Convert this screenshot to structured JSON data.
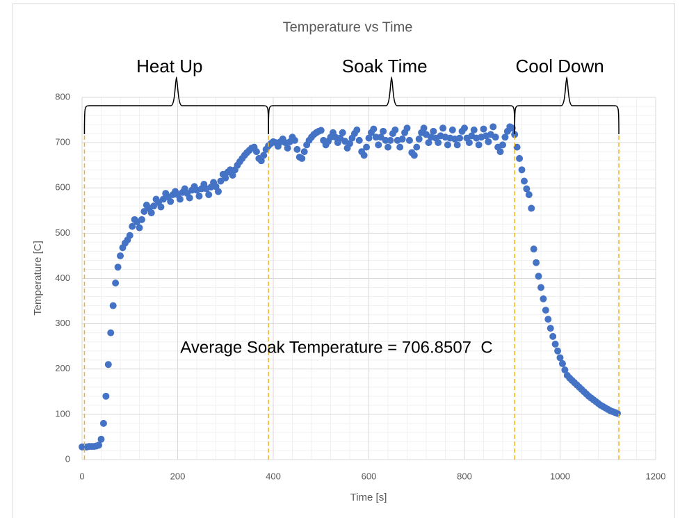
{
  "chart_data": {
    "type": "scatter",
    "title": "Temperature vs Time",
    "x_label": "Time [s]",
    "y_label": "Temperature [C]",
    "color": "#4472c4",
    "grid": true,
    "minor_grid": true,
    "xlim": [
      0,
      1200
    ],
    "xticks": [
      0,
      200,
      400,
      600,
      800,
      1000,
      1200
    ],
    "ylim": [
      0,
      800
    ],
    "yticks": [
      0,
      100,
      200,
      300,
      400,
      500,
      600,
      700,
      800
    ],
    "phases": [
      {
        "label": "Heat Up"
      },
      {
        "label": "Soak Time"
      },
      {
        "label": "Cool Down"
      }
    ],
    "phase_bounds": [
      5,
      390,
      905,
      1123
    ],
    "note": "Average Soak Temperature = 706.8507  C",
    "x": [
      0,
      5,
      10,
      15,
      20,
      25,
      30,
      35,
      40,
      45,
      50,
      55,
      60,
      65,
      70,
      75,
      80,
      85,
      90,
      95,
      100,
      105,
      110,
      115,
      120,
      125,
      130,
      135,
      140,
      145,
      150,
      155,
      160,
      165,
      170,
      175,
      180,
      185,
      190,
      195,
      200,
      205,
      210,
      215,
      220,
      225,
      230,
      235,
      240,
      245,
      250,
      255,
      260,
      265,
      270,
      275,
      280,
      285,
      290,
      295,
      300,
      305,
      310,
      315,
      320,
      325,
      330,
      335,
      340,
      345,
      350,
      355,
      360,
      365,
      370,
      375,
      380,
      385,
      390,
      395,
      400,
      405,
      410,
      415,
      420,
      425,
      430,
      435,
      440,
      445,
      450,
      455,
      460,
      465,
      470,
      475,
      480,
      485,
      490,
      495,
      500,
      505,
      510,
      515,
      520,
      525,
      530,
      535,
      540,
      545,
      550,
      555,
      560,
      565,
      570,
      575,
      580,
      585,
      590,
      595,
      600,
      605,
      610,
      615,
      620,
      625,
      630,
      635,
      640,
      645,
      650,
      655,
      660,
      665,
      670,
      675,
      680,
      685,
      690,
      695,
      700,
      705,
      710,
      715,
      720,
      725,
      730,
      735,
      740,
      745,
      750,
      755,
      760,
      765,
      770,
      775,
      780,
      785,
      790,
      795,
      800,
      805,
      810,
      815,
      820,
      825,
      830,
      835,
      840,
      845,
      850,
      855,
      860,
      865,
      870,
      875,
      880,
      885,
      890,
      895,
      900,
      905,
      910,
      915,
      920,
      925,
      930,
      935,
      940,
      945,
      950,
      955,
      960,
      965,
      970,
      975,
      980,
      985,
      990,
      995,
      1000,
      1005,
      1010,
      1015,
      1020,
      1025,
      1030,
      1035,
      1040,
      1045,
      1050,
      1055,
      1060,
      1065,
      1070,
      1075,
      1080,
      1085,
      1090,
      1095,
      1100,
      1105,
      1110,
      1115,
      1120
    ],
    "values": [
      28,
      28,
      28,
      29,
      29,
      29,
      30,
      32,
      45,
      80,
      140,
      210,
      280,
      340,
      390,
      425,
      450,
      468,
      478,
      485,
      495,
      515,
      530,
      525,
      512,
      530,
      548,
      562,
      555,
      545,
      560,
      575,
      568,
      558,
      575,
      588,
      580,
      570,
      585,
      592,
      585,
      575,
      590,
      598,
      588,
      578,
      595,
      603,
      595,
      582,
      598,
      608,
      598,
      585,
      602,
      612,
      603,
      592,
      615,
      630,
      622,
      635,
      640,
      628,
      640,
      650,
      658,
      665,
      672,
      678,
      683,
      688,
      690,
      680,
      665,
      660,
      672,
      685,
      693,
      698,
      702,
      700,
      692,
      702,
      708,
      700,
      688,
      702,
      712,
      705,
      685,
      668,
      665,
      680,
      695,
      705,
      712,
      718,
      722,
      725,
      727,
      705,
      695,
      703,
      712,
      722,
      712,
      700,
      710,
      722,
      703,
      688,
      698,
      710,
      720,
      728,
      705,
      680,
      672,
      690,
      710,
      722,
      730,
      712,
      695,
      712,
      725,
      705,
      690,
      705,
      720,
      728,
      705,
      690,
      708,
      722,
      732,
      705,
      678,
      672,
      690,
      708,
      722,
      732,
      718,
      700,
      712,
      725,
      710,
      700,
      715,
      732,
      712,
      695,
      710,
      728,
      708,
      695,
      710,
      725,
      732,
      710,
      700,
      715,
      728,
      710,
      695,
      712,
      730,
      715,
      702,
      718,
      735,
      712,
      690,
      680,
      695,
      712,
      725,
      735,
      732,
      718,
      690,
      665,
      640,
      615,
      598,
      585,
      555,
      465,
      435,
      405,
      380,
      355,
      330,
      310,
      290,
      272,
      255,
      240,
      225,
      212,
      198,
      186,
      180,
      175,
      170,
      165,
      160,
      155,
      150,
      145,
      140,
      136,
      132,
      128,
      124,
      120,
      117,
      114,
      111,
      108,
      106,
      104,
      102
    ]
  }
}
